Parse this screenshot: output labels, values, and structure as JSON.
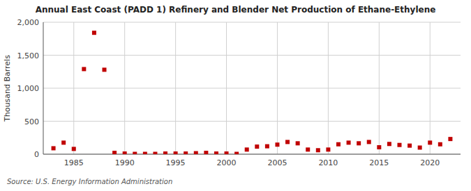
{
  "chart_data": {
    "type": "scatter",
    "title": "Annual East Coast (PADD 1) Refinery and Blender Net Production of Ethane-Ethylene",
    "ylabel": "Thousand Barrels",
    "source": "Source: U.S. Energy Information Administration",
    "color": "#c00000",
    "marker": "square",
    "grid": true,
    "x": [
      1983,
      1984,
      1985,
      1986,
      1987,
      1988,
      1989,
      1990,
      1991,
      1992,
      1993,
      1994,
      1995,
      1996,
      1997,
      1998,
      1999,
      2000,
      2001,
      2002,
      2003,
      2004,
      2005,
      2006,
      2007,
      2008,
      2009,
      2010,
      2011,
      2012,
      2013,
      2014,
      2015,
      2016,
      2017,
      2018,
      2019,
      2020,
      2021,
      2022
    ],
    "values": [
      90,
      175,
      80,
      1290,
      1840,
      1280,
      20,
      10,
      5,
      5,
      5,
      10,
      10,
      10,
      15,
      20,
      10,
      10,
      5,
      70,
      115,
      120,
      145,
      185,
      165,
      70,
      60,
      70,
      150,
      175,
      165,
      185,
      105,
      155,
      140,
      130,
      100,
      175,
      150,
      230
    ],
    "xlim": [
      1982,
      2023
    ],
    "ylim": [
      0,
      2000
    ],
    "xticks": [
      1985,
      1990,
      1995,
      2000,
      2005,
      2010,
      2015,
      2020
    ],
    "yticks": [
      0,
      500,
      {
        "value": 1000,
        "label": "1,000"
      },
      {
        "value": 1500,
        "label": "1,500"
      },
      {
        "value": 2000,
        "label": "2,000"
      }
    ]
  }
}
